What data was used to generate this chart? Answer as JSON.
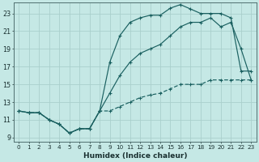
{
  "xlabel": "Humidex (Indice chaleur)",
  "bg_color": "#c5e8e5",
  "grid_color": "#aad0cc",
  "line_color": "#1a6060",
  "xlim": [
    -0.5,
    23.5
  ],
  "ylim": [
    8.5,
    24.2
  ],
  "xticks": [
    0,
    1,
    2,
    3,
    4,
    5,
    6,
    7,
    8,
    9,
    10,
    11,
    12,
    13,
    14,
    15,
    16,
    17,
    18,
    19,
    20,
    21,
    22,
    23
  ],
  "yticks": [
    9,
    11,
    13,
    15,
    17,
    19,
    21,
    23
  ],
  "line1_x": [
    0,
    1,
    2,
    3,
    4,
    5,
    6,
    7,
    8,
    9,
    10,
    11,
    12,
    13,
    14,
    15,
    16,
    17,
    18,
    19,
    20,
    21,
    22,
    23
  ],
  "line1_y": [
    12,
    11.8,
    11.8,
    11,
    10.5,
    9.5,
    10,
    10,
    12,
    17.5,
    20.5,
    22,
    22.5,
    22.8,
    22.8,
    23.6,
    24,
    23.5,
    23,
    23,
    23,
    22.5,
    16.5,
    16.5
  ],
  "line2_x": [
    0,
    1,
    2,
    3,
    4,
    5,
    6,
    7,
    8,
    9,
    10,
    11,
    12,
    13,
    14,
    15,
    16,
    17,
    18,
    19,
    20,
    21,
    22,
    23
  ],
  "line2_y": [
    12,
    11.8,
    11.8,
    11,
    10.5,
    9.5,
    10,
    10,
    12,
    14,
    16,
    17.5,
    18.5,
    19,
    19.5,
    20.5,
    21.5,
    22,
    22,
    22.5,
    21.5,
    22,
    19,
    15.5
  ],
  "line3_x": [
    0,
    1,
    2,
    3,
    4,
    5,
    6,
    7,
    8,
    9,
    10,
    11,
    12,
    13,
    14,
    15,
    16,
    17,
    18,
    19,
    20,
    21,
    22,
    23
  ],
  "line3_y": [
    12,
    11.8,
    11.8,
    11,
    10.5,
    9.5,
    10,
    10,
    12,
    12,
    12.5,
    13,
    13.5,
    13.8,
    14,
    14.5,
    15,
    15,
    15,
    15.5,
    15.5,
    15.5,
    15.5,
    15.5
  ]
}
